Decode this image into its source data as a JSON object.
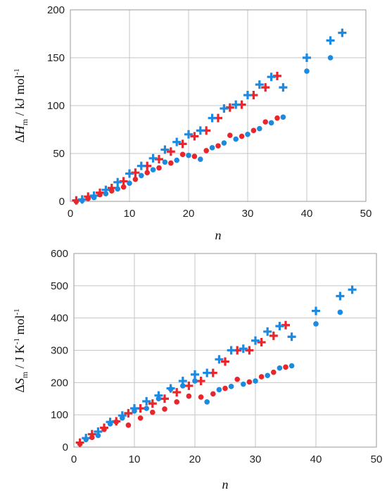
{
  "colors": {
    "red": "#e8262b",
    "blue": "#1b8ae0"
  },
  "chart_data": [
    {
      "type": "scatter",
      "xlabel": "n",
      "ylabel": "ΔH_m / kJ mol^-1",
      "ylabel_parts": {
        "delta": "Δ",
        "symbol": "H",
        "sub": "m",
        "unit": " / kJ mol",
        "sup": "-1"
      },
      "xlim": [
        0,
        50
      ],
      "ylim": [
        0,
        200
      ],
      "xticks": [
        0,
        10,
        20,
        30,
        40,
        50
      ],
      "yticks": [
        0,
        50,
        100,
        150,
        200
      ],
      "grid": true,
      "series": [
        {
          "color": "red",
          "marker": "cross",
          "points": [
            [
              1,
              1
            ],
            [
              3,
              5
            ],
            [
              5,
              9
            ],
            [
              7,
              14
            ],
            [
              9,
              21
            ],
            [
              11,
              30
            ],
            [
              13,
              37
            ],
            [
              15,
              44
            ],
            [
              17,
              52
            ],
            [
              19,
              60
            ],
            [
              21,
              68
            ],
            [
              23,
              74
            ],
            [
              25,
              87
            ],
            [
              27,
              98
            ],
            [
              29,
              101
            ],
            [
              31,
              111
            ],
            [
              33,
              119
            ],
            [
              35,
              131
            ]
          ]
        },
        {
          "color": "blue",
          "marker": "cross",
          "points": [
            [
              2,
              2
            ],
            [
              4,
              6
            ],
            [
              6,
              12
            ],
            [
              8,
              20
            ],
            [
              10,
              29
            ],
            [
              12,
              37
            ],
            [
              14,
              45
            ],
            [
              16,
              54
            ],
            [
              18,
              62
            ],
            [
              20,
              70
            ],
            [
              22,
              74
            ],
            [
              24,
              87
            ],
            [
              26,
              97
            ],
            [
              28,
              101
            ],
            [
              30,
              111
            ],
            [
              32,
              122
            ],
            [
              34,
              130
            ],
            [
              36,
              119
            ],
            [
              40,
              150
            ],
            [
              44,
              168
            ],
            [
              46,
              176
            ]
          ]
        },
        {
          "color": "red",
          "marker": "dot",
          "points": [
            [
              1,
              0
            ],
            [
              3,
              3
            ],
            [
              5,
              7
            ],
            [
              7,
              11
            ],
            [
              9,
              15
            ],
            [
              11,
              23
            ],
            [
              13,
              30
            ],
            [
              15,
              35
            ],
            [
              17,
              40
            ],
            [
              19,
              49
            ],
            [
              21,
              47
            ],
            [
              23,
              53
            ],
            [
              25,
              58
            ],
            [
              27,
              69
            ],
            [
              29,
              68
            ],
            [
              31,
              74
            ],
            [
              33,
              83
            ],
            [
              35,
              87
            ]
          ]
        },
        {
          "color": "blue",
          "marker": "dot",
          "points": [
            [
              2,
              1
            ],
            [
              4,
              4
            ],
            [
              6,
              8
            ],
            [
              8,
              13
            ],
            [
              10,
              19
            ],
            [
              12,
              27
            ],
            [
              14,
              33
            ],
            [
              16,
              41
            ],
            [
              18,
              43
            ],
            [
              20,
              48
            ],
            [
              22,
              44
            ],
            [
              24,
              56
            ],
            [
              26,
              61
            ],
            [
              28,
              65
            ],
            [
              30,
              70
            ],
            [
              32,
              76
            ],
            [
              34,
              82
            ],
            [
              36,
              88
            ],
            [
              40,
              136
            ],
            [
              44,
              150
            ]
          ]
        }
      ]
    },
    {
      "type": "scatter",
      "xlabel": "n",
      "ylabel": "ΔS_m / J K^-1 mol^-1",
      "ylabel_parts": {
        "delta": "Δ",
        "symbol": "S",
        "sub": "m",
        "unit": " / J K",
        "sup": "-1",
        "unit2": " mol",
        "sup2": "-1"
      },
      "xlim": [
        0,
        50
      ],
      "ylim": [
        0,
        600
      ],
      "xticks": [
        0,
        10,
        20,
        30,
        40,
        50
      ],
      "yticks": [
        0,
        100,
        200,
        300,
        400,
        500,
        600
      ],
      "grid": true,
      "series": [
        {
          "color": "red",
          "marker": "cross",
          "points": [
            [
              1,
              14
            ],
            [
              3,
              40
            ],
            [
              5,
              60
            ],
            [
              7,
              80
            ],
            [
              9,
              105
            ],
            [
              11,
              120
            ],
            [
              13,
              135
            ],
            [
              15,
              150
            ],
            [
              17,
              170
            ],
            [
              19,
              190
            ],
            [
              21,
              205
            ],
            [
              23,
              230
            ],
            [
              25,
              265
            ],
            [
              27,
              300
            ],
            [
              29,
              300
            ],
            [
              31,
              325
            ],
            [
              33,
              345
            ],
            [
              35,
              378
            ]
          ]
        },
        {
          "color": "blue",
          "marker": "cross",
          "points": [
            [
              2,
              28
            ],
            [
              4,
              48
            ],
            [
              6,
              78
            ],
            [
              8,
              98
            ],
            [
              10,
              120
            ],
            [
              12,
              142
            ],
            [
              14,
              160
            ],
            [
              16,
              182
            ],
            [
              18,
              205
            ],
            [
              20,
              225
            ],
            [
              22,
              230
            ],
            [
              24,
              272
            ],
            [
              26,
              300
            ],
            [
              28,
              305
            ],
            [
              30,
              330
            ],
            [
              32,
              358
            ],
            [
              34,
              375
            ],
            [
              36,
              342
            ],
            [
              40,
              422
            ],
            [
              44,
              468
            ],
            [
              46,
              488
            ]
          ]
        },
        {
          "color": "red",
          "marker": "dot",
          "points": [
            [
              1,
              10
            ],
            [
              3,
              30
            ],
            [
              5,
              55
            ],
            [
              7,
              78
            ],
            [
              9,
              68
            ],
            [
              11,
              90
            ],
            [
              13,
              108
            ],
            [
              15,
              118
            ],
            [
              17,
              140
            ],
            [
              19,
              158
            ],
            [
              21,
              155
            ],
            [
              23,
              165
            ],
            [
              25,
              182
            ],
            [
              27,
              210
            ],
            [
              29,
              202
            ],
            [
              31,
              218
            ],
            [
              33,
              232
            ],
            [
              35,
              248
            ]
          ]
        },
        {
          "color": "blue",
          "marker": "dot",
          "points": [
            [
              2,
              24
            ],
            [
              4,
              36
            ],
            [
              6,
              72
            ],
            [
              8,
              90
            ],
            [
              10,
              112
            ],
            [
              12,
              120
            ],
            [
              14,
              150
            ],
            [
              16,
              180
            ],
            [
              18,
              190
            ],
            [
              20,
              205
            ],
            [
              22,
              140
            ],
            [
              24,
              178
            ],
            [
              26,
              188
            ],
            [
              28,
              195
            ],
            [
              30,
              205
            ],
            [
              32,
              222
            ],
            [
              34,
              245
            ],
            [
              36,
              252
            ],
            [
              40,
              382
            ],
            [
              44,
              418
            ]
          ]
        }
      ]
    }
  ]
}
